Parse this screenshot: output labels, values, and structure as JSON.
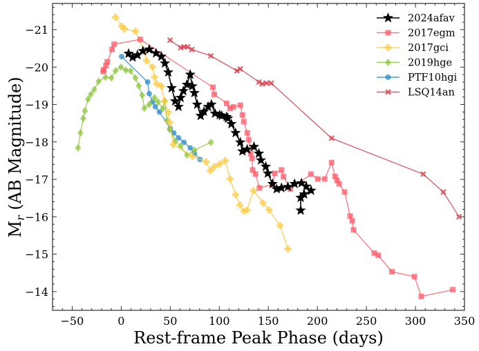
{
  "chart_data": {
    "type": "line",
    "title": "",
    "xlabel": "Rest-frame Peak Phase (days)",
    "ylabel": "M_r (AB Magnitude)",
    "xlim": [
      -70,
      350
    ],
    "ylim": [
      -13.5,
      -21.7
    ],
    "y_inverted": true,
    "grid": false,
    "legend_position": "top-right",
    "x_ticks": [
      -50,
      0,
      50,
      100,
      150,
      200,
      250,
      300,
      350
    ],
    "y_ticks": [
      -14,
      -15,
      -16,
      -17,
      -18,
      -19,
      -20,
      -21
    ],
    "x_tick_labels": [
      "−50",
      "0",
      "50",
      "100",
      "150",
      "200",
      "250",
      "300",
      "350"
    ],
    "y_tick_labels": [
      "−14",
      "−15",
      "−16",
      "−17",
      "−18",
      "−19",
      "−20",
      "−21"
    ],
    "series": [
      {
        "name": "2024afav",
        "color": "#000000",
        "marker": "star",
        "x": [
          7.5,
          11.7,
          16.6,
          22.2,
          28.6,
          35.5,
          41,
          44.6,
          48,
          51.5,
          55,
          58.5,
          60.6,
          63.4,
          67,
          70.4,
          72.5,
          74.7,
          77.5,
          81,
          84.4,
          88.6,
          92,
          95.7,
          100.5,
          102.6,
          107.5,
          108.8,
          112.4,
          116.6,
          121.4,
          123.6,
          128.4,
          135.4,
          140.4,
          142.5,
          147.4,
          149.5,
          154.3,
          158.5,
          163.4,
          170,
          176.8,
          183.8,
          188.7,
          193.6,
          186.5,
          183,
          183
        ],
        "y": [
          -20.36,
          -20.26,
          -20.32,
          -20.43,
          -20.47,
          -20.37,
          -20.28,
          -20.1,
          -19.86,
          -19.44,
          -19.09,
          -18.94,
          -19.18,
          -19.36,
          -19.53,
          -19.8,
          -19.49,
          -19.31,
          -19.0,
          -18.7,
          -18.81,
          -18.94,
          -19.0,
          -18.76,
          -18.72,
          -18.7,
          -18.67,
          -18.63,
          -18.48,
          -18.24,
          -17.99,
          -17.75,
          -17.8,
          -17.87,
          -17.69,
          -17.51,
          -17.34,
          -17.16,
          -16.88,
          -16.74,
          -16.77,
          -16.8,
          -16.88,
          -16.9,
          -16.81,
          -16.7,
          -16.6,
          -16.51,
          -16.17
        ]
      },
      {
        "name": "2017egm",
        "color": "#ff5a6a",
        "marker": "square",
        "x": [
          -18.4,
          -17.7,
          -15.6,
          -14.2,
          -9.3,
          -7.2,
          19.4,
          93.5,
          94.9,
          107.5,
          111,
          114.5,
          121.5,
          123.6,
          125,
          128.6,
          130,
          132,
          133.4,
          134,
          136.9,
          141,
          154.3,
          156.4,
          163.4,
          165.5,
          172.5,
          193.5,
          200.5,
          207.5,
          214.5,
          218,
          220,
          222.2,
          227.8,
          233.4,
          235.5,
          236.9,
          258,
          262,
          276,
          299,
          306,
          338
        ],
        "y": [
          -19.88,
          -19.93,
          -20.04,
          -20.14,
          -20.47,
          -20.61,
          -20.74,
          -19.46,
          -19.27,
          -19.03,
          -18.9,
          -18.94,
          -18.98,
          -18.72,
          -18.54,
          -18.24,
          -18.06,
          -17.69,
          -17.56,
          -17.25,
          -17.14,
          -16.77,
          -16.86,
          -17.16,
          -17.25,
          -17.07,
          -16.74,
          -17.14,
          -17.01,
          -17.01,
          -17.45,
          -17.08,
          -16.97,
          -16.88,
          -16.66,
          -16.02,
          -15.89,
          -15.65,
          -15.03,
          -14.97,
          -14.53,
          -14.4,
          -13.87,
          -14.05
        ]
      },
      {
        "name": "2017gci",
        "color": "#ffc940",
        "marker": "plus",
        "x": [
          -5.8,
          0.5,
          3.3,
          14.5,
          23.6,
          25.7,
          32,
          34,
          36.2,
          41,
          44,
          48,
          49.5,
          53,
          72.5,
          86.5,
          91,
          95,
          100.5,
          106,
          111,
          116.7,
          121,
          125,
          128.4,
          134.8,
          144.5,
          150.8,
          162,
          170
        ],
        "y": [
          -21.33,
          -21.09,
          -21.02,
          -20.96,
          -20.41,
          -20.17,
          -20.0,
          -19.73,
          -19.55,
          -19.49,
          -19.09,
          -18.79,
          -18.52,
          -17.93,
          -17.62,
          -17.47,
          -17.23,
          -17.34,
          -17.41,
          -17.5,
          -17.01,
          -16.59,
          -16.31,
          -16.15,
          -16.18,
          -16.7,
          -16.37,
          -16.18,
          -15.76,
          -15.14
        ]
      },
      {
        "name": "2019hge",
        "color": "#8cc63e",
        "marker": "diamond",
        "x": [
          -44,
          -41.5,
          -38.7,
          -37,
          -33.8,
          -31,
          -27.5,
          -23,
          -16,
          -10,
          -5.8,
          -0.2,
          4.7,
          9.6,
          14.5,
          17.9,
          21.4,
          23.6,
          28.6,
          34,
          37.5,
          42.5,
          44.5,
          46.6,
          49.4,
          55,
          60.6,
          67,
          74.7,
          91.5
        ],
        "y": [
          -17.84,
          -18.24,
          -18.63,
          -18.83,
          -19.14,
          -19.27,
          -19.4,
          -19.62,
          -19.73,
          -19.71,
          -19.9,
          -20.0,
          -19.92,
          -19.9,
          -19.71,
          -19.5,
          -19.25,
          -18.9,
          -19.0,
          -19.18,
          -19.07,
          -18.89,
          -19.09,
          -18.57,
          -18.33,
          -18.02,
          -17.89,
          -17.65,
          -17.78,
          -17.99
        ]
      },
      {
        "name": "PTF10hgi",
        "color": "#2b8cce",
        "marker": "circle",
        "x": [
          0.5,
          27,
          28.6,
          32,
          34.8,
          39,
          50,
          53.6,
          58.5,
          64,
          70.4,
          74.7,
          80.3
        ],
        "y": [
          -20.28,
          -19.6,
          -19.29,
          -19.07,
          -18.94,
          -18.8,
          -18.36,
          -18.24,
          -18.11,
          -17.99,
          -17.84,
          -17.69,
          -17.53
        ]
      },
      {
        "name": "LSQ14an",
        "color": "#d63a4a",
        "marker": "x",
        "x": [
          49.8,
          60.6,
          64,
          67.6,
          72,
          91.4,
          118,
          121.4,
          140.4,
          143.8,
          148,
          153,
          214.5,
          308,
          328.4,
          344.5
        ],
        "y": [
          -20.72,
          -20.52,
          -20.54,
          -20.54,
          -20.47,
          -20.3,
          -19.9,
          -19.95,
          -19.6,
          -19.55,
          -19.57,
          -19.57,
          -18.1,
          -17.14,
          -16.66,
          -16.0
        ]
      }
    ]
  }
}
